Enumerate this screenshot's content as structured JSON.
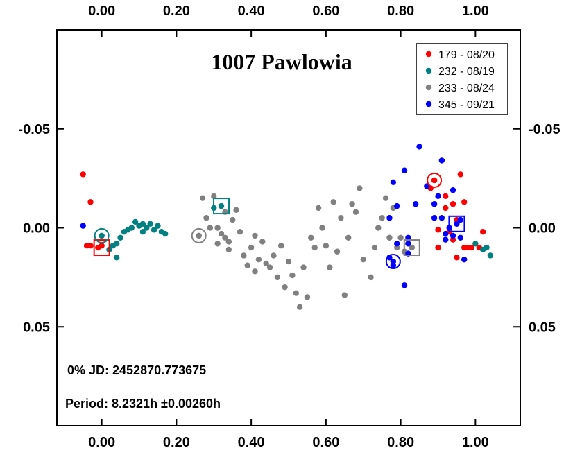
{
  "chart_data": {
    "type": "scatter",
    "title": "1007 Pawlowia",
    "xlabel": "",
    "ylabel": "",
    "xlim": [
      -0.12,
      1.12
    ],
    "ylim": [
      -0.1,
      0.1
    ],
    "y_inverted": true,
    "x_ticks": [
      "0.00",
      "0.20",
      "0.40",
      "0.60",
      "0.80",
      "1.00"
    ],
    "x_tick_values": [
      0.0,
      0.2,
      0.4,
      0.6,
      0.8,
      1.0
    ],
    "y_ticks": [
      "-0.05",
      "0.00",
      "0.05"
    ],
    "y_tick_values": [
      -0.05,
      0.0,
      0.05
    ],
    "legend_position": "top-right",
    "grid": false,
    "series": [
      {
        "name": "179 - 08/20",
        "color": "#ff0000",
        "start_marker": {
          "shape": "square",
          "x": 0.0,
          "y": 0.01
        },
        "end_marker": {
          "shape": "circle",
          "x": 0.89,
          "y": -0.024
        },
        "points": [
          [
            -0.05,
            -0.027
          ],
          [
            -0.03,
            -0.013
          ],
          [
            -0.04,
            0.009
          ],
          [
            -0.03,
            0.009
          ],
          [
            -0.01,
            0.01
          ],
          [
            0.0,
            0.009
          ],
          [
            0.88,
            -0.02
          ],
          [
            0.89,
            -0.024
          ],
          [
            0.92,
            -0.016
          ],
          [
            0.94,
            -0.012
          ],
          [
            0.92,
            -0.01
          ],
          [
            0.9,
            0.001
          ],
          [
            0.9,
            0.01
          ],
          [
            0.93,
            0.002
          ],
          [
            0.95,
            -0.004
          ],
          [
            0.96,
            -0.027
          ],
          [
            0.97,
            -0.013
          ],
          [
            0.94,
            0.006
          ],
          [
            0.97,
            0.01
          ],
          [
            0.98,
            0.01
          ],
          [
            0.99,
            0.01
          ],
          [
            1.01,
            0.01
          ],
          [
            0.95,
            0.015
          ],
          [
            0.97,
            0.016
          ],
          [
            1.02,
            0.002
          ]
        ]
      },
      {
        "name": "232 - 08/19",
        "color": "#008080",
        "start_marker": {
          "shape": "circle",
          "x": 0.0,
          "y": 0.004
        },
        "end_marker": {
          "shape": "square",
          "x": 0.32,
          "y": -0.011
        },
        "points": [
          [
            0.0,
            0.004
          ],
          [
            0.02,
            0.011
          ],
          [
            0.03,
            0.009
          ],
          [
            0.04,
            0.008
          ],
          [
            0.05,
            0.005
          ],
          [
            0.06,
            0.002
          ],
          [
            0.04,
            0.015
          ],
          [
            0.07,
            0.001
          ],
          [
            0.08,
            0.0
          ],
          [
            0.09,
            -0.003
          ],
          [
            0.1,
            -0.001
          ],
          [
            0.11,
            -0.002
          ],
          [
            0.11,
            0.002
          ],
          [
            0.12,
            0.0
          ],
          [
            0.13,
            -0.002
          ],
          [
            0.14,
            0.001
          ],
          [
            0.15,
            -0.001
          ],
          [
            0.16,
            0.002
          ],
          [
            0.17,
            0.003
          ],
          [
            0.32,
            -0.011
          ],
          [
            0.3,
            -0.01
          ],
          [
            1.0,
            0.008
          ],
          [
            1.02,
            0.011
          ],
          [
            1.03,
            0.01
          ],
          [
            1.04,
            0.014
          ]
        ]
      },
      {
        "name": "233 - 08/24",
        "color": "#808080",
        "start_marker": {
          "shape": "circle",
          "x": 0.26,
          "y": 0.004
        },
        "end_marker": {
          "shape": "square",
          "x": 0.83,
          "y": 0.01
        },
        "points": [
          [
            0.26,
            0.004
          ],
          [
            0.27,
            -0.015
          ],
          [
            0.28,
            -0.005
          ],
          [
            0.29,
            0.0
          ],
          [
            0.3,
            -0.016
          ],
          [
            0.31,
            0.0
          ],
          [
            0.31,
            0.008
          ],
          [
            0.32,
            0.003
          ],
          [
            0.33,
            -0.008
          ],
          [
            0.33,
            0.005
          ],
          [
            0.34,
            0.007
          ],
          [
            0.34,
            0.011
          ],
          [
            0.35,
            -0.004
          ],
          [
            0.36,
            -0.009
          ],
          [
            0.37,
            0.002
          ],
          [
            0.38,
            0.014
          ],
          [
            0.39,
            0.019
          ],
          [
            0.4,
            0.01
          ],
          [
            0.41,
            0.004
          ],
          [
            0.41,
            0.022
          ],
          [
            0.42,
            0.016
          ],
          [
            0.43,
            0.007
          ],
          [
            0.44,
            0.018
          ],
          [
            0.45,
            0.02
          ],
          [
            0.46,
            0.014
          ],
          [
            0.47,
            0.025
          ],
          [
            0.48,
            0.009
          ],
          [
            0.49,
            0.03
          ],
          [
            0.5,
            0.017
          ],
          [
            0.51,
            0.024
          ],
          [
            0.52,
            0.033
          ],
          [
            0.53,
            0.04
          ],
          [
            0.54,
            0.02
          ],
          [
            0.55,
            0.035
          ],
          [
            0.56,
            0.005
          ],
          [
            0.57,
            0.01
          ],
          [
            0.58,
            -0.01
          ],
          [
            0.59,
            0.0
          ],
          [
            0.6,
            0.009
          ],
          [
            0.61,
            0.02
          ],
          [
            0.62,
            -0.013
          ],
          [
            0.63,
            0.012
          ],
          [
            0.64,
            -0.005
          ],
          [
            0.65,
            0.034
          ],
          [
            0.66,
            0.005
          ],
          [
            0.67,
            -0.012
          ],
          [
            0.68,
            -0.008
          ],
          [
            0.69,
            -0.02
          ],
          [
            0.7,
            0.016
          ],
          [
            0.72,
            0.025
          ],
          [
            0.73,
            0.01
          ],
          [
            0.74,
            0.0
          ],
          [
            0.75,
            -0.005
          ],
          [
            0.76,
            -0.015
          ],
          [
            0.77,
            0.005
          ],
          [
            0.78,
            -0.01
          ],
          [
            0.79,
            0.01
          ],
          [
            0.8,
            0.005
          ],
          [
            0.81,
            0.012
          ],
          [
            0.82,
            0.008
          ],
          [
            0.83,
            0.01
          ]
        ]
      },
      {
        "name": "345 - 09/21",
        "color": "#0000ff",
        "start_marker": {
          "shape": "square",
          "x": 0.95,
          "y": -0.002
        },
        "end_marker": {
          "shape": "circle",
          "x": 0.78,
          "y": 0.017
        },
        "points": [
          [
            -0.05,
            -0.001
          ],
          [
            0.78,
            0.017
          ],
          [
            0.77,
            0.015
          ],
          [
            0.78,
            0.019
          ],
          [
            0.79,
            0.008
          ],
          [
            0.77,
            -0.005
          ],
          [
            0.79,
            -0.011
          ],
          [
            0.78,
            -0.023
          ],
          [
            0.81,
            -0.029
          ],
          [
            0.82,
            0.005
          ],
          [
            0.82,
            0.008
          ],
          [
            0.82,
            0.013
          ],
          [
            0.81,
            0.029
          ],
          [
            0.84,
            -0.012
          ],
          [
            0.85,
            -0.041
          ],
          [
            0.87,
            -0.021
          ],
          [
            0.89,
            -0.005
          ],
          [
            0.89,
            -0.012
          ],
          [
            0.9,
            -0.016
          ],
          [
            0.91,
            -0.034
          ],
          [
            0.91,
            -0.005
          ],
          [
            0.92,
            0.003
          ],
          [
            0.92,
            0.006
          ],
          [
            0.93,
            0.0
          ],
          [
            0.94,
            -0.019
          ],
          [
            0.94,
            0.004
          ],
          [
            0.95,
            -0.002
          ],
          [
            0.96,
            -0.004
          ],
          [
            0.96,
            0.005
          ],
          [
            0.97,
            0.016
          ]
        ]
      }
    ],
    "annotations": [
      "0% JD:  2452870.773675",
      "Period: 8.2321h   ±0.00260h"
    ]
  }
}
